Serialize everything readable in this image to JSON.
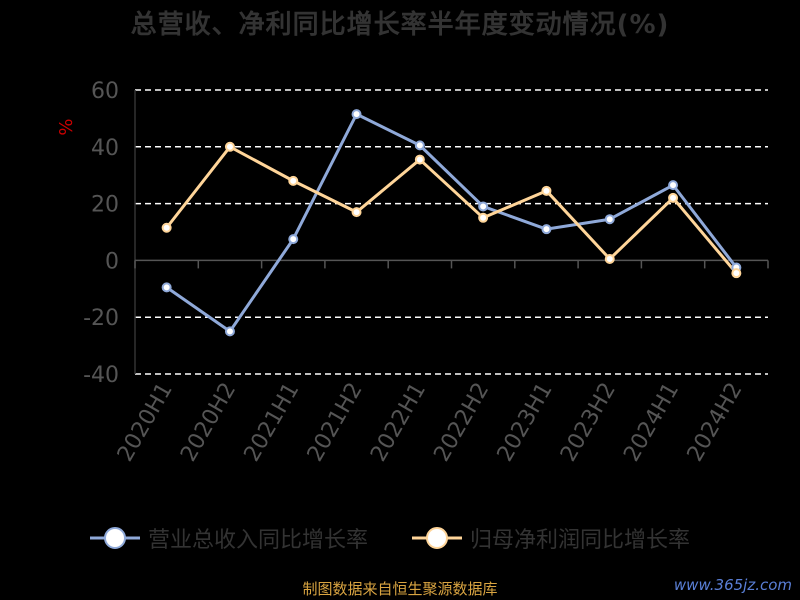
{
  "title": "总营收、净利同比增长率半年度变动情况(%)",
  "footer": "制图数据来自恒生聚源数据库",
  "watermark": "www.365jz.com",
  "colors": {
    "background": "#000000",
    "revenue": "#8fa9d9",
    "profit": "#ffd599",
    "grid": "#ffffff",
    "axis_text": "#555555",
    "unit": "#cc0000"
  },
  "chart_data": {
    "type": "line",
    "title": "总营收、净利同比增长率半年度变动情况(%)",
    "ylabel": "%",
    "xlabel": "",
    "ylim": [
      -40,
      60
    ],
    "yticks": [
      -40,
      -20,
      0,
      20,
      40,
      60
    ],
    "grid": true,
    "legend_position": "bottom",
    "categories": [
      "2020H1",
      "2020H2",
      "2021H1",
      "2021H2",
      "2022H1",
      "2022H2",
      "2023H1",
      "2023H2",
      "2024H1",
      "2024H2"
    ],
    "series": [
      {
        "name": "营业总收入同比增长率",
        "color": "#8fa9d9",
        "values": [
          -9.5,
          -25,
          7.5,
          51.5,
          40.5,
          19,
          11,
          14.5,
          26.5,
          -2.5
        ]
      },
      {
        "name": "归母净利润同比增长率",
        "color": "#ffd599",
        "values": [
          11.5,
          40,
          28,
          17,
          35.5,
          15,
          24.5,
          0.5,
          22,
          -4.5
        ]
      }
    ]
  }
}
